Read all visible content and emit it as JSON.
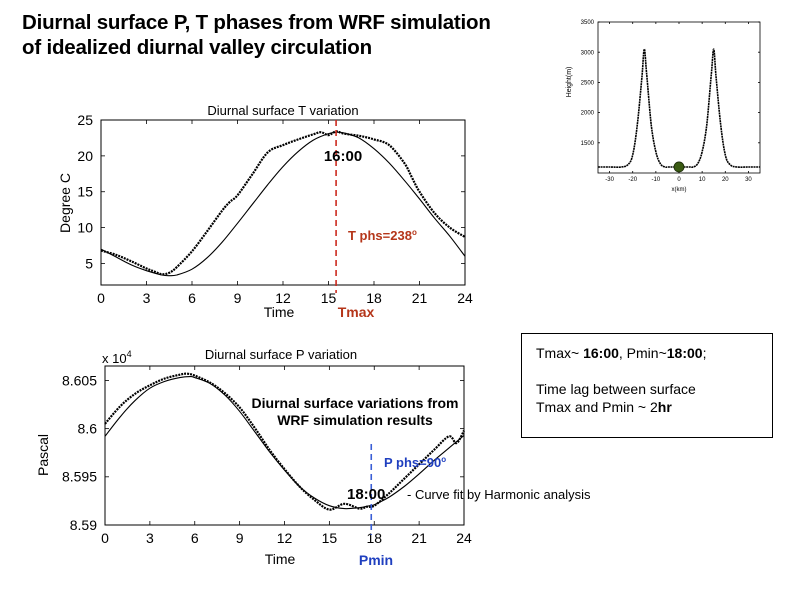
{
  "slide": {
    "title_line1": "Diurnal surface P, T phases from WRF simulation",
    "title_line2": "of idealized diurnal valley circulation"
  },
  "summary": {
    "line1_a": "Tmax~ ",
    "line1_b": "16:00",
    "line1_c": ", Pmin~",
    "line1_d": "18:00",
    "line1_e": ";",
    "line2": "Time lag between surface",
    "line3_a": "Tmax and Pmin ~ 2",
    "line3_b": "hr"
  },
  "colors": {
    "marker_red": "#cc2a1e",
    "marker_blue": "#3b5fd6",
    "phase_red": "#b5361a",
    "phase_blue": "#1f3fbf",
    "dot_green": "#3a5a12"
  },
  "chart_data": [
    {
      "type": "line",
      "title": "Diurnal surface T variation",
      "xlabel": "Time",
      "ylabel": "Degree C",
      "xlim": [
        0,
        24
      ],
      "ylim": [
        2,
        25
      ],
      "xticks": [
        0,
        3,
        6,
        9,
        12,
        15,
        18,
        21,
        24
      ],
      "yticks": [
        5,
        10,
        15,
        20,
        25
      ],
      "marker": {
        "x": 15.5,
        "label": "Tmax",
        "time_label": "16:00",
        "phase_label": "T phs=238",
        "phase_sup": "o"
      },
      "series": [
        {
          "name": "WRF simulation (dotted)",
          "style": "dots",
          "x": [
            0,
            1,
            2,
            3,
            3.5,
            4,
            4.5,
            5,
            6,
            7,
            8,
            8.5,
            9,
            10,
            11,
            12,
            13,
            14,
            14.5,
            15,
            15.5,
            16,
            17,
            18,
            19,
            20,
            20.5,
            21,
            22,
            23,
            24
          ],
          "y": [
            6.8,
            6.2,
            5.3,
            4.3,
            3.9,
            3.5,
            3.7,
            4.5,
            6.7,
            9.5,
            12.4,
            13.6,
            14.5,
            17.5,
            20.5,
            21.5,
            22.3,
            23.0,
            23.3,
            22.9,
            23.4,
            23.1,
            22.8,
            22.3,
            21.5,
            19.0,
            17.0,
            15.0,
            12.0,
            10.0,
            8.7
          ]
        },
        {
          "name": "Harmonic fit",
          "style": "line",
          "x": [
            0,
            1,
            2,
            3,
            4,
            4.5,
            5,
            6,
            7,
            8,
            9,
            10,
            11,
            12,
            13,
            14,
            15,
            15.6,
            16,
            17,
            18,
            19,
            20,
            21,
            22,
            23,
            24
          ],
          "y": [
            7.0,
            5.9,
            4.8,
            4.0,
            3.4,
            3.3,
            3.4,
            4.2,
            5.8,
            8.0,
            10.6,
            13.3,
            16.0,
            18.5,
            20.6,
            22.2,
            23.1,
            23.3,
            23.2,
            22.5,
            21.0,
            19.0,
            16.6,
            14.0,
            11.3,
            8.8,
            6.0
          ]
        }
      ]
    },
    {
      "type": "line",
      "title": "Diurnal surface P variation",
      "xlabel": "Time",
      "ylabel": "Pascal",
      "scale_label": "x 10",
      "scale_exp": "4",
      "xlim": [
        0,
        24
      ],
      "ylim": [
        8.59,
        8.6065
      ],
      "xticks": [
        0,
        3,
        6,
        9,
        12,
        15,
        18,
        21,
        24
      ],
      "yticks": [
        8.59,
        8.595,
        8.6,
        8.605
      ],
      "ytick_labels": [
        "8.59",
        "8.595",
        "8.6",
        "8.605"
      ],
      "marker": {
        "x": 17.8,
        "label": "Pmin",
        "time_label": "18:00",
        "phase_label": "P phs=90",
        "phase_sup": "o"
      },
      "annotations": {
        "sim_line1": "Diurnal surface variations from",
        "sim_line2": "WRF simulation results",
        "fit_label": "- Curve fit by Harmonic analysis"
      },
      "series": [
        {
          "name": "WRF simulation (dotted)",
          "style": "dots",
          "x": [
            0,
            1,
            2,
            3,
            4,
            5,
            5.5,
            6,
            7,
            8,
            9,
            10,
            11,
            12,
            13,
            14,
            15,
            16,
            17,
            17.5,
            18,
            19,
            20,
            21,
            22,
            23,
            23.5,
            24
          ],
          "y": [
            8.6005,
            8.6023,
            8.6036,
            8.6045,
            8.6052,
            8.6056,
            8.6057,
            8.6055,
            8.6048,
            8.6037,
            8.6022,
            8.6001,
            8.5978,
            8.5958,
            8.594,
            8.5926,
            8.5916,
            8.5922,
            8.5917,
            8.5919,
            8.592,
            8.5933,
            8.5948,
            8.5963,
            8.5978,
            8.5992,
            8.5985,
            8.5998
          ]
        },
        {
          "name": "Harmonic fit",
          "style": "line",
          "x": [
            0,
            1,
            2,
            3,
            4,
            5,
            5.7,
            6,
            7,
            8,
            9,
            10,
            11,
            12,
            13,
            14,
            15,
            16,
            17,
            17.7,
            18,
            19,
            20,
            21,
            22,
            23,
            24
          ],
          "y": [
            8.5992,
            8.6012,
            8.6029,
            8.6042,
            8.6049,
            8.6053,
            8.6054,
            8.6053,
            8.6047,
            8.6035,
            8.6018,
            8.5997,
            8.5976,
            8.5957,
            8.594,
            8.5928,
            8.592,
            8.5917,
            8.5918,
            8.592,
            8.5921,
            8.5929,
            8.594,
            8.5953,
            8.5967,
            8.598,
            8.5993
          ]
        }
      ]
    },
    {
      "type": "line",
      "title": "",
      "xlabel": "x(km)",
      "ylabel": "Height(m)",
      "xlim": [
        -35,
        35
      ],
      "ylim": [
        1000,
        3500
      ],
      "xticks": [
        -30,
        -20,
        -10,
        0,
        10,
        20,
        30
      ],
      "yticks": [
        1500,
        2000,
        2500,
        3000,
        3500
      ],
      "point": {
        "x": 0,
        "y": 1100
      },
      "series": [
        {
          "name": "terrain profile",
          "style": "line",
          "x": [
            -35,
            -30,
            -25,
            -22,
            -20,
            -18,
            -16,
            -15,
            -14,
            -12,
            -10,
            -8,
            -6,
            -5,
            -4,
            0,
            4,
            5,
            6,
            8,
            10,
            12,
            14,
            15,
            16,
            18,
            20,
            22,
            25,
            30,
            35
          ],
          "y": [
            1100,
            1100,
            1100,
            1140,
            1300,
            1800,
            2600,
            3050,
            2650,
            1800,
            1350,
            1150,
            1100,
            1100,
            1100,
            1100,
            1100,
            1100,
            1100,
            1150,
            1350,
            1800,
            2650,
            3050,
            2600,
            1800,
            1300,
            1140,
            1100,
            1100,
            1100
          ]
        }
      ]
    }
  ]
}
